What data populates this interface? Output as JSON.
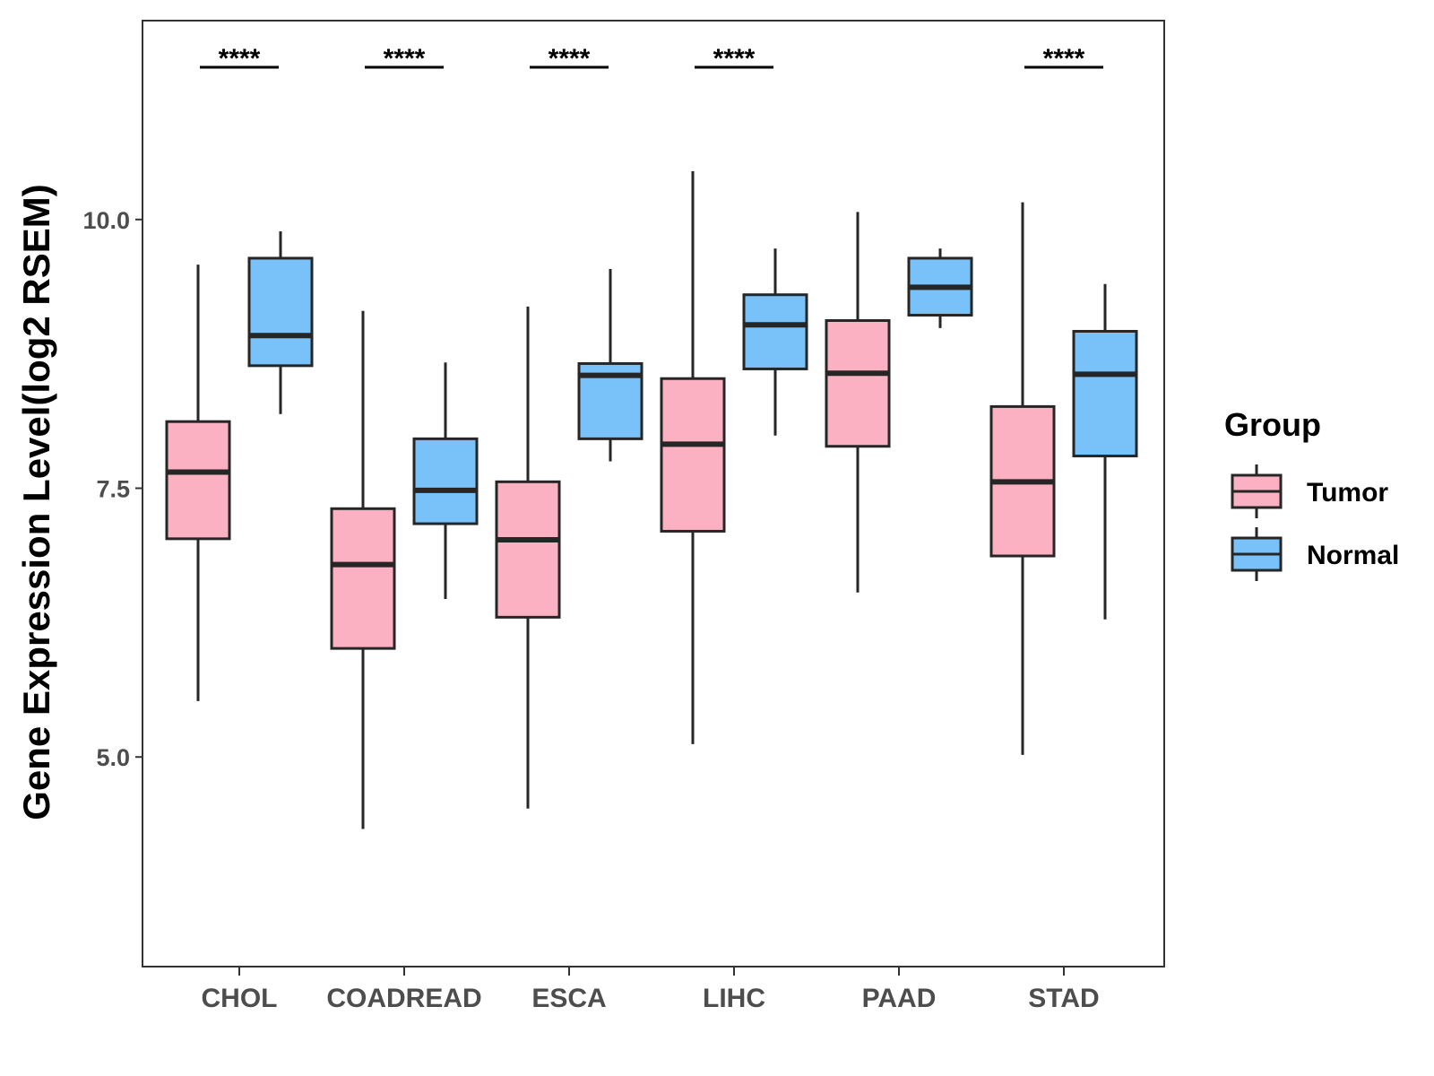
{
  "chart_data": {
    "type": "boxplot",
    "title": "",
    "xlabel": "",
    "ylabel": "Gene Expression Level(log2 RSEM)",
    "ylim": [
      3.05,
      11.85
    ],
    "yticks": [
      5.0,
      7.5,
      10.0
    ],
    "ytick_labels": [
      "5.0",
      "7.5",
      "10.0"
    ],
    "categories": [
      "CHOL",
      "COADREAD",
      "ESCA",
      "LIHC",
      "PAAD",
      "STAD"
    ],
    "legend": {
      "title": "Group",
      "position": "right",
      "entries": [
        {
          "name": "Tumor",
          "color": "#fbb1c2"
        },
        {
          "name": "Normal",
          "color": "#78c1f9"
        }
      ]
    },
    "series": [
      {
        "name": "Tumor",
        "color": "#fbb1c2",
        "boxes": [
          {
            "min": 5.52,
            "q1": 7.03,
            "median": 7.65,
            "q3": 8.12,
            "max": 9.58
          },
          {
            "min": 4.33,
            "q1": 6.01,
            "median": 6.79,
            "q3": 7.31,
            "max": 9.15
          },
          {
            "min": 4.52,
            "q1": 6.3,
            "median": 7.02,
            "q3": 7.56,
            "max": 9.19
          },
          {
            "min": 5.12,
            "q1": 7.1,
            "median": 7.91,
            "q3": 8.52,
            "max": 10.45
          },
          {
            "min": 6.53,
            "q1": 7.89,
            "median": 8.57,
            "q3": 9.06,
            "max": 10.07
          },
          {
            "min": 5.02,
            "q1": 6.87,
            "median": 7.56,
            "q3": 8.26,
            "max": 10.16
          }
        ]
      },
      {
        "name": "Normal",
        "color": "#78c1f9",
        "boxes": [
          {
            "min": 8.19,
            "q1": 8.64,
            "median": 8.92,
            "q3": 9.64,
            "max": 9.89
          },
          {
            "min": 6.47,
            "q1": 7.17,
            "median": 7.48,
            "q3": 7.96,
            "max": 8.67
          },
          {
            "min": 7.75,
            "q1": 7.96,
            "median": 8.55,
            "q3": 8.66,
            "max": 9.54
          },
          {
            "min": 7.99,
            "q1": 8.61,
            "median": 9.02,
            "q3": 9.3,
            "max": 9.73
          },
          {
            "min": 8.99,
            "q1": 9.11,
            "median": 9.37,
            "q3": 9.64,
            "max": 9.73
          },
          {
            "min": 6.28,
            "q1": 7.8,
            "median": 8.56,
            "q3": 8.96,
            "max": 9.4
          }
        ]
      }
    ],
    "significance": [
      "****",
      "****",
      "****",
      "****",
      "",
      "****"
    ]
  }
}
